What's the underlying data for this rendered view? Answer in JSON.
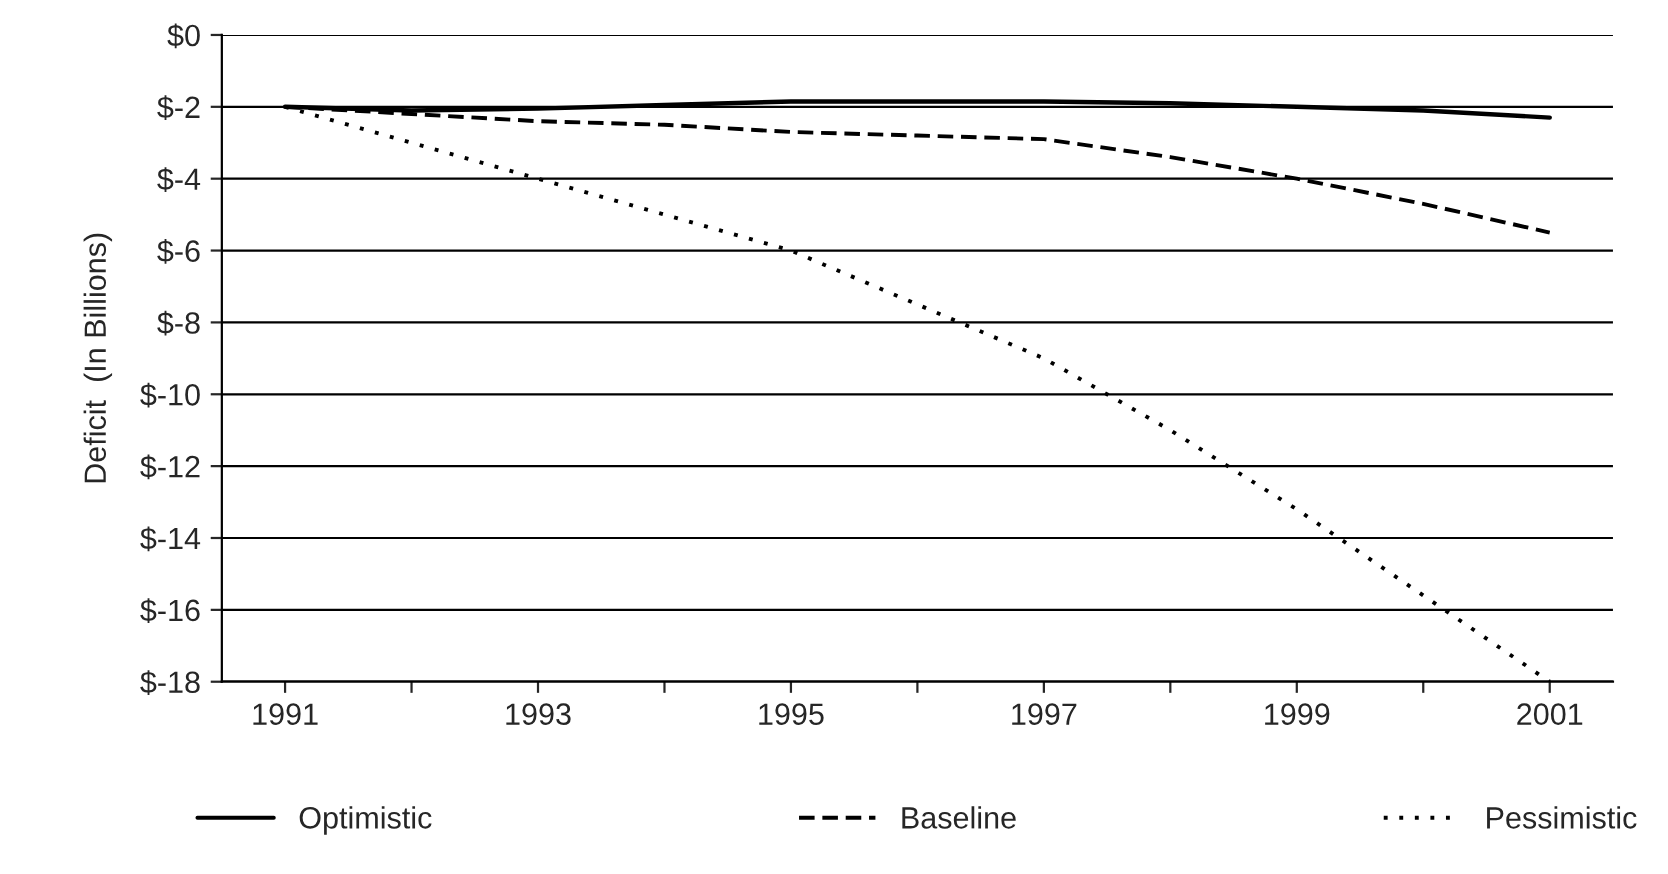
{
  "chart_data": {
    "type": "line",
    "ylabel": "Deficit  (In Billions)",
    "x": [
      1991,
      1992,
      1993,
      1994,
      1995,
      1996,
      1997,
      1998,
      1999,
      2000,
      2001
    ],
    "series": [
      {
        "name": "Optimistic",
        "color": "#000000",
        "line_style": "solid",
        "values": [
          -2.0,
          -2.1,
          -2.05,
          -1.95,
          -1.85,
          -1.85,
          -1.85,
          -1.9,
          -2.0,
          -2.1,
          -2.3
        ]
      },
      {
        "name": "Baseline",
        "color": "#000000",
        "line_style": "dashed",
        "values": [
          -2.0,
          -2.2,
          -2.4,
          -2.5,
          -2.7,
          -2.8,
          -2.9,
          -3.4,
          -4.0,
          -4.7,
          -5.5
        ]
      },
      {
        "name": "Pessimistic",
        "color": "#000000",
        "line_style": "dotted",
        "values": [
          -2.0,
          -3.0,
          -4.0,
          -5.0,
          -6.0,
          -7.5,
          -9.0,
          -11.0,
          -13.2,
          -15.6,
          -18.0
        ]
      }
    ],
    "xlim": [
      1990.5,
      2001.5
    ],
    "xticks": [
      1991,
      {
        "value": 1992,
        "label": null
      },
      1993,
      {
        "value": 1994,
        "label": null
      },
      1995,
      {
        "value": 1996,
        "label": null
      },
      1997,
      {
        "value": 1998,
        "label": null
      },
      1999,
      {
        "value": 2000,
        "label": null
      },
      2001
    ],
    "ylim": [
      -18,
      0
    ],
    "yticks": [
      {
        "value": 0,
        "label": "$0"
      },
      {
        "value": -2,
        "label": "$-2"
      },
      {
        "value": -4,
        "label": "$-4"
      },
      {
        "value": -6,
        "label": "$-6"
      },
      {
        "value": -8,
        "label": "$-8"
      },
      {
        "value": -10,
        "label": "$-10"
      },
      {
        "value": -12,
        "label": "$-12"
      },
      {
        "value": -14,
        "label": "$-14"
      },
      {
        "value": -16,
        "label": "$-16"
      },
      {
        "value": -18,
        "label": "$-18"
      }
    ],
    "grid": "y",
    "legend": "bottom",
    "marker": "none"
  }
}
